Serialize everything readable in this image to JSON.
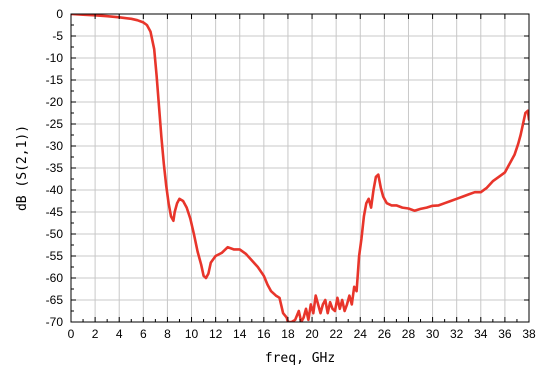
{
  "chart_data": {
    "type": "line",
    "xlabel": "freq, GHz",
    "ylabel": "dB (S(2,1))",
    "xlim": [
      0,
      38
    ],
    "ylim": [
      -70,
      0
    ],
    "xticks": [
      0,
      2,
      4,
      6,
      8,
      10,
      12,
      14,
      16,
      18,
      20,
      22,
      24,
      26,
      28,
      30,
      32,
      34,
      36,
      38
    ],
    "yticks": [
      0,
      -5,
      -10,
      -15,
      -20,
      -25,
      -30,
      -35,
      -40,
      -45,
      -50,
      -55,
      -60,
      -65,
      -70
    ],
    "xtick_labels": [
      "0",
      "2",
      "4",
      "6",
      "8",
      "10",
      "12",
      "14",
      "16",
      "18",
      "20",
      "22",
      "24",
      "26",
      "28",
      "30",
      "32",
      "34",
      "36",
      "38"
    ],
    "ytick_labels": [
      "0",
      "-5",
      "-10",
      "-15",
      "-20",
      "-25",
      "-30",
      "-35",
      "-40",
      "-45",
      "-50",
      "-55",
      "-60",
      "-65",
      "-70"
    ],
    "grid": true,
    "color": "#e8352b",
    "series": [
      {
        "x": [
          0,
          1,
          2,
          3,
          4,
          5,
          5.5,
          6,
          6.3,
          6.6,
          6.9,
          7.1,
          7.3,
          7.5,
          7.7,
          7.9,
          8.1,
          8.3,
          8.5,
          8.6,
          8.8,
          9.0,
          9.3,
          9.6,
          9.9,
          10.2,
          10.5,
          10.8,
          11.0,
          11.2,
          11.4,
          11.6,
          12.0,
          12.5,
          13.0,
          13.5,
          14.0,
          14.5,
          15.0,
          15.5,
          16.0,
          16.3,
          16.6,
          17.0,
          17.3,
          17.6,
          17.9,
          18.0,
          18.3,
          18.6,
          18.9,
          19.1,
          19.3,
          19.5,
          19.7,
          19.9,
          20.1,
          20.3,
          20.5,
          20.7,
          20.9,
          21.1,
          21.3,
          21.5,
          21.7,
          21.9,
          22.1,
          22.3,
          22.5,
          22.7,
          22.9,
          23.1,
          23.3,
          23.5,
          23.7,
          23.9,
          24.1,
          24.3,
          24.5,
          24.7,
          24.9,
          25.1,
          25.3,
          25.5,
          25.7,
          25.9,
          26.2,
          26.6,
          27.0,
          27.5,
          28.0,
          28.5,
          29.0,
          29.5,
          30.0,
          30.5,
          31.0,
          31.5,
          32.0,
          32.5,
          33.0,
          33.5,
          34.0,
          34.5,
          35.0,
          35.5,
          36.0,
          36.5,
          36.8,
          37.1,
          37.3,
          37.5,
          37.7,
          37.9,
          38.0
        ],
        "y": [
          0,
          -0.15,
          -0.3,
          -0.5,
          -0.75,
          -1.1,
          -1.4,
          -1.9,
          -2.5,
          -4,
          -8,
          -14,
          -21,
          -28,
          -34,
          -39,
          -43,
          -46,
          -47,
          -45,
          -43,
          -42,
          -42.5,
          -44,
          -46.5,
          -50,
          -54,
          -57,
          -59.5,
          -60,
          -59,
          -56.5,
          -55,
          -54.3,
          -53,
          -53.5,
          -53.5,
          -54.5,
          -56,
          -57.5,
          -59.5,
          -61.5,
          -63,
          -64,
          -64.5,
          -68,
          -69,
          -70,
          -70,
          -69.5,
          -67.5,
          -70,
          -69,
          -67,
          -69.5,
          -66,
          -68,
          -64,
          -66,
          -68,
          -66,
          -65,
          -68,
          -65.5,
          -67,
          -67.5,
          -64.5,
          -67,
          -65,
          -67.5,
          -66,
          -64,
          -66,
          -62,
          -63,
          -55,
          -51,
          -46,
          -43,
          -42,
          -44,
          -40,
          -37,
          -36.5,
          -39.5,
          -41.5,
          -43,
          -43.5,
          -43.5,
          -44,
          -44.2,
          -44.7,
          -44.3,
          -44,
          -43.6,
          -43.5,
          -43,
          -42.5,
          -42,
          -41.5,
          -41,
          -40.5,
          -40.5,
          -39.5,
          -38,
          -37,
          -36,
          -33.5,
          -32,
          -29.5,
          -27.5,
          -25,
          -22.5,
          -22,
          -24
        ]
      }
    ]
  }
}
